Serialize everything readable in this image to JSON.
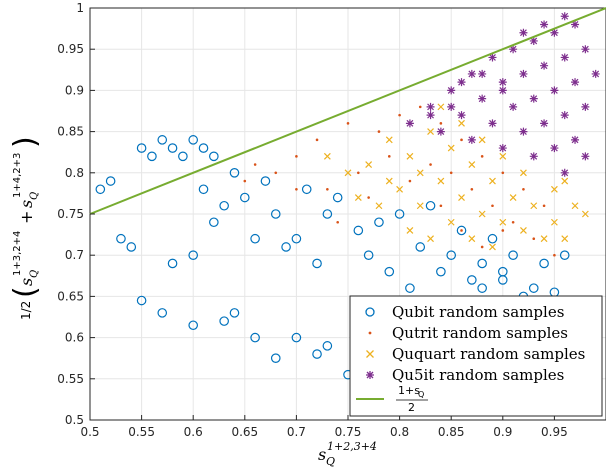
{
  "chart_data": {
    "type": "scatter",
    "xlim": [
      0.5,
      1.0
    ],
    "ylim": [
      0.5,
      1.0
    ],
    "xticks": [
      "0.5",
      "0.55",
      "0.6",
      "0.65",
      "0.7",
      "0.75",
      "0.8",
      "0.85",
      "0.9",
      "0.95"
    ],
    "yticks": [
      "0.5",
      "0.55",
      "0.6",
      "0.65",
      "0.7",
      "0.75",
      "0.8",
      "0.85",
      "0.9",
      "0.95",
      "1"
    ],
    "xlabel_base": "s",
    "xlabel_sub": "Q",
    "xlabel_sup": "1+2,3+4",
    "ylabel_frac": "1/2",
    "ylabel_term1_sup": "1+3,2+4",
    "ylabel_term2_sup": "1+4,2+3",
    "grid": true,
    "legend_position": "bottom-right",
    "series": [
      {
        "name": "Qubit random samples",
        "marker": "circle",
        "color": "#0072BD",
        "points": [
          [
            0.51,
            0.78
          ],
          [
            0.52,
            0.79
          ],
          [
            0.55,
            0.83
          ],
          [
            0.56,
            0.82
          ],
          [
            0.57,
            0.84
          ],
          [
            0.58,
            0.83
          ],
          [
            0.59,
            0.82
          ],
          [
            0.6,
            0.84
          ],
          [
            0.61,
            0.83
          ],
          [
            0.62,
            0.82
          ],
          [
            0.55,
            0.645
          ],
          [
            0.57,
            0.63
          ],
          [
            0.6,
            0.615
          ],
          [
            0.64,
            0.63
          ],
          [
            0.66,
            0.6
          ],
          [
            0.7,
            0.6
          ],
          [
            0.72,
            0.58
          ],
          [
            0.73,
            0.59
          ],
          [
            0.8,
            0.6
          ],
          [
            0.85,
            0.61
          ],
          [
            0.88,
            0.66
          ],
          [
            0.92,
            0.65
          ],
          [
            0.95,
            0.655
          ],
          [
            0.93,
            0.66
          ],
          [
            0.9,
            0.67
          ],
          [
            0.75,
            0.555
          ],
          [
            0.68,
            0.575
          ],
          [
            0.63,
            0.62
          ],
          [
            0.54,
            0.71
          ],
          [
            0.53,
            0.72
          ],
          [
            0.58,
            0.69
          ],
          [
            0.6,
            0.7
          ],
          [
            0.62,
            0.74
          ],
          [
            0.65,
            0.77
          ],
          [
            0.68,
            0.75
          ],
          [
            0.7,
            0.72
          ],
          [
            0.74,
            0.77
          ],
          [
            0.78,
            0.74
          ],
          [
            0.82,
            0.71
          ],
          [
            0.85,
            0.7
          ],
          [
            0.88,
            0.69
          ],
          [
            0.9,
            0.68
          ],
          [
            0.94,
            0.69
          ],
          [
            0.96,
            0.7
          ],
          [
            0.86,
            0.73
          ],
          [
            0.83,
            0.76
          ],
          [
            0.8,
            0.75
          ],
          [
            0.76,
            0.73
          ],
          [
            0.72,
            0.69
          ],
          [
            0.69,
            0.71
          ],
          [
            0.66,
            0.72
          ],
          [
            0.63,
            0.76
          ],
          [
            0.61,
            0.78
          ],
          [
            0.64,
            0.8
          ],
          [
            0.67,
            0.79
          ],
          [
            0.71,
            0.78
          ],
          [
            0.73,
            0.75
          ],
          [
            0.77,
            0.7
          ],
          [
            0.79,
            0.68
          ],
          [
            0.81,
            0.66
          ],
          [
            0.84,
            0.68
          ],
          [
            0.87,
            0.67
          ],
          [
            0.91,
            0.7
          ],
          [
            0.89,
            0.72
          ]
        ]
      },
      {
        "name": "Qutrit random samples",
        "marker": "dot",
        "color": "#D95319",
        "points": [
          [
            0.65,
            0.79
          ],
          [
            0.7,
            0.82
          ],
          [
            0.72,
            0.84
          ],
          [
            0.75,
            0.86
          ],
          [
            0.78,
            0.85
          ],
          [
            0.8,
            0.87
          ],
          [
            0.82,
            0.88
          ],
          [
            0.84,
            0.86
          ],
          [
            0.86,
            0.84
          ],
          [
            0.88,
            0.82
          ],
          [
            0.9,
            0.8
          ],
          [
            0.92,
            0.78
          ],
          [
            0.94,
            0.76
          ],
          [
            0.76,
            0.8
          ],
          [
            0.79,
            0.82
          ],
          [
            0.81,
            0.79
          ],
          [
            0.83,
            0.81
          ],
          [
            0.85,
            0.8
          ],
          [
            0.87,
            0.78
          ],
          [
            0.89,
            0.76
          ],
          [
            0.91,
            0.74
          ],
          [
            0.93,
            0.72
          ],
          [
            0.95,
            0.7
          ],
          [
            0.73,
            0.78
          ],
          [
            0.74,
            0.74
          ],
          [
            0.77,
            0.77
          ],
          [
            0.84,
            0.76
          ],
          [
            0.86,
            0.73
          ],
          [
            0.88,
            0.71
          ],
          [
            0.9,
            0.73
          ],
          [
            0.7,
            0.78
          ],
          [
            0.68,
            0.8
          ],
          [
            0.66,
            0.81
          ]
        ]
      },
      {
        "name": "Ququart random samples",
        "marker": "x",
        "color": "#EDB120",
        "points": [
          [
            0.73,
            0.82
          ],
          [
            0.75,
            0.8
          ],
          [
            0.77,
            0.81
          ],
          [
            0.79,
            0.84
          ],
          [
            0.81,
            0.82
          ],
          [
            0.83,
            0.85
          ],
          [
            0.85,
            0.83
          ],
          [
            0.87,
            0.81
          ],
          [
            0.89,
            0.79
          ],
          [
            0.91,
            0.77
          ],
          [
            0.93,
            0.76
          ],
          [
            0.95,
            0.74
          ],
          [
            0.8,
            0.78
          ],
          [
            0.82,
            0.76
          ],
          [
            0.84,
            0.79
          ],
          [
            0.86,
            0.77
          ],
          [
            0.88,
            0.75
          ],
          [
            0.9,
            0.74
          ],
          [
            0.92,
            0.73
          ],
          [
            0.94,
            0.72
          ],
          [
            0.78,
            0.76
          ],
          [
            0.81,
            0.73
          ],
          [
            0.83,
            0.72
          ],
          [
            0.85,
            0.74
          ],
          [
            0.87,
            0.72
          ],
          [
            0.89,
            0.71
          ],
          [
            0.96,
            0.72
          ],
          [
            0.97,
            0.76
          ],
          [
            0.95,
            0.78
          ],
          [
            0.9,
            0.82
          ],
          [
            0.86,
            0.86
          ],
          [
            0.82,
            0.8
          ],
          [
            0.79,
            0.79
          ],
          [
            0.76,
            0.77
          ],
          [
            0.84,
            0.88
          ],
          [
            0.88,
            0.84
          ],
          [
            0.92,
            0.8
          ],
          [
            0.96,
            0.79
          ],
          [
            0.98,
            0.75
          ]
        ]
      },
      {
        "name": "Qu5it random samples",
        "marker": "star",
        "color": "#7E2F8E",
        "points": [
          [
            0.81,
            0.86
          ],
          [
            0.83,
            0.88
          ],
          [
            0.85,
            0.9
          ],
          [
            0.87,
            0.92
          ],
          [
            0.89,
            0.94
          ],
          [
            0.91,
            0.95
          ],
          [
            0.93,
            0.96
          ],
          [
            0.95,
            0.97
          ],
          [
            0.97,
            0.98
          ],
          [
            0.84,
            0.85
          ],
          [
            0.86,
            0.87
          ],
          [
            0.88,
            0.89
          ],
          [
            0.9,
            0.91
          ],
          [
            0.92,
            0.92
          ],
          [
            0.94,
            0.93
          ],
          [
            0.96,
            0.94
          ],
          [
            0.98,
            0.95
          ],
          [
            0.87,
            0.84
          ],
          [
            0.89,
            0.86
          ],
          [
            0.91,
            0.88
          ],
          [
            0.93,
            0.89
          ],
          [
            0.95,
            0.9
          ],
          [
            0.97,
            0.91
          ],
          [
            0.99,
            0.92
          ],
          [
            0.9,
            0.83
          ],
          [
            0.92,
            0.85
          ],
          [
            0.94,
            0.86
          ],
          [
            0.96,
            0.87
          ],
          [
            0.98,
            0.88
          ],
          [
            0.93,
            0.82
          ],
          [
            0.95,
            0.83
          ],
          [
            0.97,
            0.84
          ],
          [
            0.96,
            0.8
          ],
          [
            0.98,
            0.82
          ],
          [
            0.9,
            0.9
          ],
          [
            0.88,
            0.92
          ],
          [
            0.86,
            0.91
          ],
          [
            0.92,
            0.97
          ],
          [
            0.94,
            0.98
          ],
          [
            0.96,
            0.99
          ],
          [
            0.85,
            0.88
          ],
          [
            0.83,
            0.87
          ]
        ]
      }
    ],
    "line": {
      "name": "1+sQ/2",
      "label_num": "1+s",
      "label_num_sub": "Q",
      "label_den": "2",
      "color": "#77AC30",
      "x": [
        0.5,
        1.0
      ],
      "y": [
        0.75,
        1.0
      ]
    }
  }
}
